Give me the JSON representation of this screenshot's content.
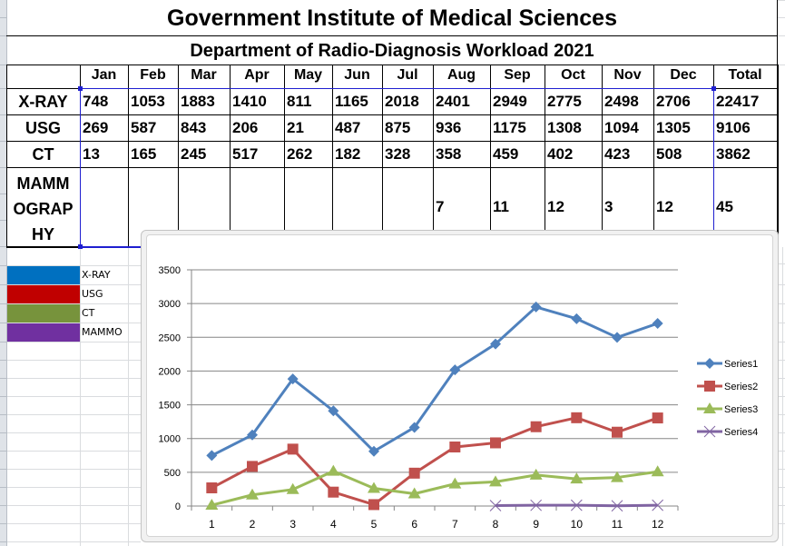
{
  "sheet": {
    "title": "Government Institute of Medical Sciences",
    "subtitle": "Department of Radio-Diagnosis Workload 2021"
  },
  "table": {
    "columns": [
      "Jan",
      "Feb",
      "Mar",
      "Apr",
      "May",
      "Jun",
      "Jul",
      "Aug",
      "Sep",
      "Oct",
      "Nov",
      "Dec",
      "Total"
    ],
    "rows": [
      {
        "label": "X-RAY",
        "values": [
          "748",
          "1053",
          "1883",
          "1410",
          "811",
          "1165",
          "2018",
          "2401",
          "2949",
          "2775",
          "2498",
          "2706",
          "22417"
        ]
      },
      {
        "label": "USG",
        "values": [
          "269",
          "587",
          "843",
          "206",
          "21",
          "487",
          "875",
          "936",
          "1175",
          "1308",
          "1094",
          "1305",
          "9106"
        ]
      },
      {
        "label": "CT",
        "values": [
          "13",
          "165",
          "245",
          "517",
          "262",
          "182",
          "328",
          "358",
          "459",
          "402",
          "423",
          "508",
          "3862"
        ]
      },
      {
        "label_lines": [
          "MAMM",
          "OGRAP",
          "HY"
        ],
        "values": [
          "",
          "",
          "",
          "",
          "",
          "",
          "",
          "7",
          "11",
          "12",
          "3",
          "12",
          "45"
        ]
      }
    ]
  },
  "color_key": [
    {
      "label": "X-RAY",
      "color": "#0070c0"
    },
    {
      "label": "USG",
      "color": "#c00000"
    },
    {
      "label": "CT",
      "color": "#77933c"
    },
    {
      "label": "MAMMO",
      "color": "#7030a0"
    }
  ],
  "chart_data": {
    "type": "line",
    "x": [
      1,
      2,
      3,
      4,
      5,
      6,
      7,
      8,
      9,
      10,
      11,
      12
    ],
    "x_tick_labels": [
      "1",
      "2",
      "3",
      "4",
      "5",
      "6",
      "7",
      "8",
      "9",
      "10",
      "11",
      "12"
    ],
    "ylim": [
      0,
      3500
    ],
    "y_ticks": [
      0,
      500,
      1000,
      1500,
      2000,
      2500,
      3000,
      3500
    ],
    "y_tick_labels": [
      "0",
      "500",
      "1000",
      "1500",
      "2000",
      "2500",
      "3000",
      "3500"
    ],
    "grid": true,
    "legend_position": "right",
    "series": [
      {
        "name": "Series1",
        "color": "#4f81bd",
        "marker": "diamond",
        "values": [
          748,
          1053,
          1883,
          1410,
          811,
          1165,
          2018,
          2401,
          2949,
          2775,
          2498,
          2706
        ]
      },
      {
        "name": "Series2",
        "color": "#c0504d",
        "marker": "square",
        "values": [
          269,
          587,
          843,
          206,
          21,
          487,
          875,
          936,
          1175,
          1308,
          1094,
          1305
        ]
      },
      {
        "name": "Series3",
        "color": "#9bbb59",
        "marker": "triangle",
        "values": [
          13,
          165,
          245,
          517,
          262,
          182,
          328,
          358,
          459,
          402,
          423,
          508
        ]
      },
      {
        "name": "Series4",
        "color": "#8064a2",
        "marker": "x",
        "values": [
          null,
          null,
          null,
          null,
          null,
          null,
          null,
          7,
          11,
          12,
          3,
          12
        ]
      }
    ]
  }
}
